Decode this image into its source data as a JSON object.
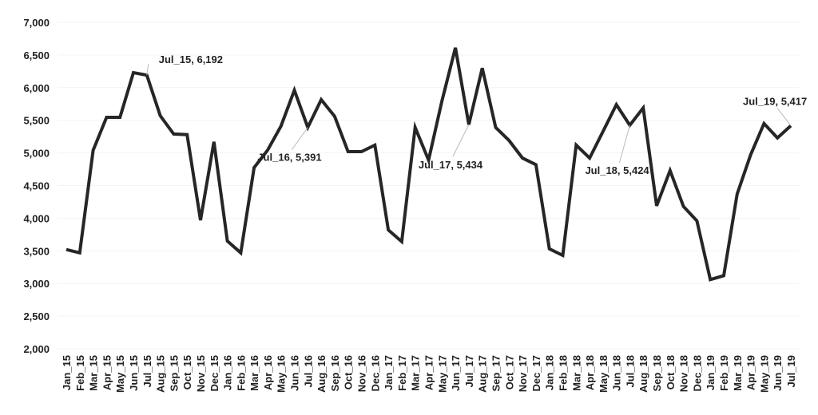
{
  "chart_data": {
    "type": "line",
    "title": "",
    "xlabel": "",
    "ylabel": "",
    "ylim": [
      2000,
      7000
    ],
    "yticks": [
      "2,000",
      "2,500",
      "3,000",
      "3,500",
      "4,000",
      "4,500",
      "5,000",
      "5,500",
      "6,000",
      "6,500",
      "7,000"
    ],
    "grid": true,
    "line_color": "#262626",
    "categories": [
      "Jan_15",
      "Feb_15",
      "Mar_15",
      "Apr_15",
      "May_15",
      "Jun_15",
      "Jul_15",
      "Aug_15",
      "Sep_15",
      "Oct_15",
      "Nov_15",
      "Dec_15",
      "Jan_16",
      "Feb_16",
      "Mar_16",
      "Apr_16",
      "May_16",
      "Jun_16",
      "Jul_16",
      "Aug_16",
      "Sep_16",
      "Oct_16",
      "Nov_16",
      "Dec_16",
      "Jan_17",
      "Feb_17",
      "Mar_17",
      "Apr_17",
      "May_17",
      "Jun_17",
      "Jul_17",
      "Aug_17",
      "Sep_17",
      "Oct_17",
      "Nov_17",
      "Dec_17",
      "Jan_18",
      "Feb_18",
      "Mar_18",
      "Apr_18",
      "May_18",
      "Jun_18",
      "Jul_18",
      "Aug_18",
      "Sep_18",
      "Oct_18",
      "Nov_18",
      "Dec_18",
      "Jan_19",
      "Feb_19",
      "Mar_19",
      "Apr_19",
      "May_19",
      "Jun_19",
      "Jul_19"
    ],
    "values": [
      3520,
      3470,
      5040,
      5545,
      5545,
      6230,
      6192,
      5570,
      5290,
      5280,
      3970,
      5170,
      3650,
      3470,
      4775,
      5040,
      5410,
      5960,
      5391,
      5815,
      5560,
      5020,
      5020,
      5120,
      3820,
      3640,
      5390,
      4890,
      5800,
      6610,
      5434,
      6300,
      5390,
      5190,
      4920,
      4820,
      3530,
      3430,
      5120,
      4920,
      5330,
      5740,
      5424,
      5690,
      4190,
      4730,
      4180,
      3960,
      3060,
      3120,
      4370,
      4970,
      5450,
      5230,
      5417
    ],
    "annotations": [
      {
        "category": "Jul_15",
        "text": "Jul_15, 6,192"
      },
      {
        "category": "Jul_16",
        "text": "Jul_16, 5,391"
      },
      {
        "category": "Jul_17",
        "text": "Jul_17, 5,434"
      },
      {
        "category": "Jul_18",
        "text": "Jul_18, 5,424"
      },
      {
        "category": "Jul_19",
        "text": "Jul_19, 5,417"
      }
    ]
  }
}
